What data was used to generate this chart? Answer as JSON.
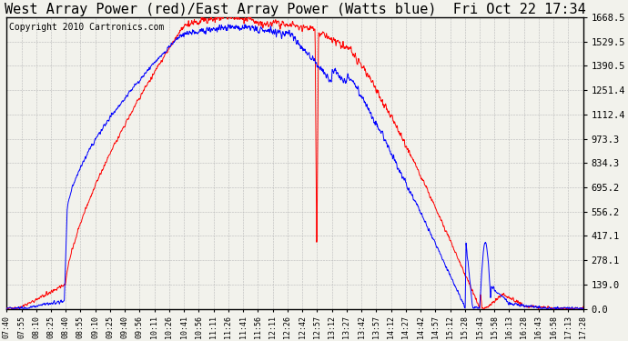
{
  "title": "West Array Power (red)/East Array Power (Watts blue)  Fri Oct 22 17:34",
  "copyright": "Copyright 2010 Cartronics.com",
  "yticks": [
    0.0,
    139.0,
    278.1,
    417.1,
    556.2,
    695.2,
    834.3,
    973.3,
    1112.4,
    1251.4,
    1390.5,
    1529.5,
    1668.5
  ],
  "ymax": 1668.5,
  "ymin": 0.0,
  "xtick_labels": [
    "07:40",
    "07:55",
    "08:10",
    "08:25",
    "08:40",
    "08:55",
    "09:10",
    "09:25",
    "09:40",
    "09:56",
    "10:11",
    "10:26",
    "10:41",
    "10:56",
    "11:11",
    "11:26",
    "11:41",
    "11:56",
    "12:11",
    "12:26",
    "12:42",
    "12:57",
    "13:12",
    "13:27",
    "13:42",
    "13:57",
    "14:12",
    "14:27",
    "14:42",
    "14:57",
    "15:12",
    "15:28",
    "15:43",
    "15:58",
    "16:13",
    "16:28",
    "16:43",
    "16:58",
    "17:13",
    "17:28"
  ],
  "bg_color": "#f2f2ec",
  "grid_color": "#b8b8b8",
  "red_color": "#ff0000",
  "blue_color": "#0000ff",
  "title_fontsize": 11,
  "copyright_fontsize": 7
}
